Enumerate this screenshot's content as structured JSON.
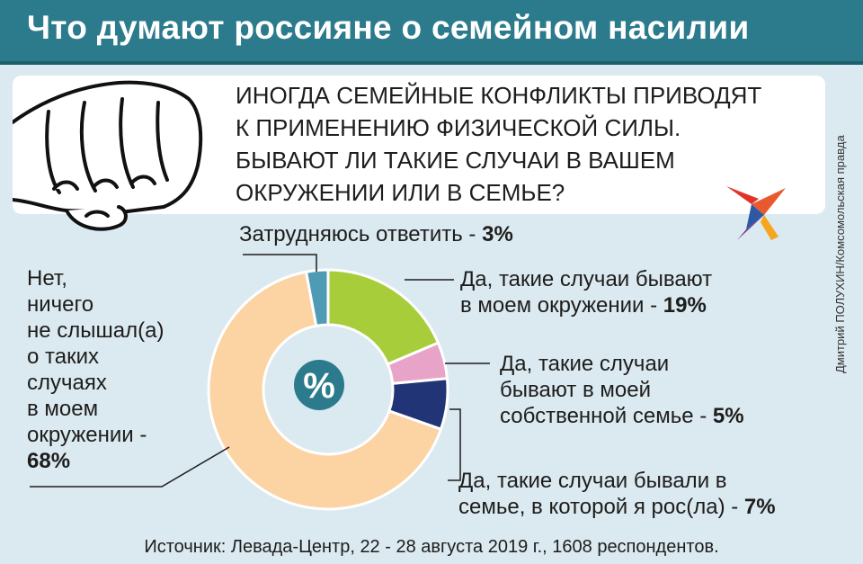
{
  "header": {
    "title": "Что думают россияне о семейном насилии"
  },
  "question": {
    "lines": [
      "Иногда семейные конфликты приводят",
      "к применению физической силы.",
      "Бывают ли такие случаи в вашем",
      "окружении или в семье?"
    ]
  },
  "credit": "Дмитрий ПОЛУХИН/Комсомольская правда",
  "labels": {
    "difficult": {
      "text": "Затрудняюсь ответить - ",
      "pct": "3%"
    },
    "env": {
      "lines": [
        "Да, такие случаи бывают",
        "в моем окружении - "
      ],
      "pct": "19%"
    },
    "own": {
      "lines": [
        "Да, такие случаи",
        "бывают в моей",
        "собственной семье - "
      ],
      "pct": "5%"
    },
    "grew": {
      "lines": [
        "Да, такие случаи бывали в",
        "семье, в которой я рос(ла) - "
      ],
      "pct": "7%"
    },
    "no": {
      "lines": [
        "Нет,",
        "ничего",
        "не слышал(а)",
        "о таких",
        "случаях",
        "в моем",
        "окружении -"
      ],
      "pct": "68%"
    }
  },
  "center_symbol": "%",
  "source": "Источник: Левада-Центр, 22 - 28 августа 2019 г., 1608 респондентов.",
  "chart_data": {
    "type": "pie",
    "title": "Что думают россияне о семейном насилии",
    "subtitle": "Иногда семейные конфликты приводят к применению физической силы. Бывают ли такие случаи в вашем окружении или в семье?",
    "categories": [
      "Да, такие случаи бывают в моем окружении",
      "Да, такие случаи бывают в моей собственной семье",
      "Да, такие случаи бывали в семье, в которой я рос(ла)",
      "Нет, ничего не слышал(а) о таких случаях в моем окружении",
      "Затрудняюсь ответить"
    ],
    "values": [
      19,
      5,
      7,
      68,
      3
    ],
    "unit": "%",
    "colors": [
      "#a7cd3a",
      "#e7a3c8",
      "#213576",
      "#fcd3a3",
      "#4f9bb5"
    ],
    "source": "Левада-Центр, 22 - 28 августа 2019 г., 1608 респондентов"
  }
}
